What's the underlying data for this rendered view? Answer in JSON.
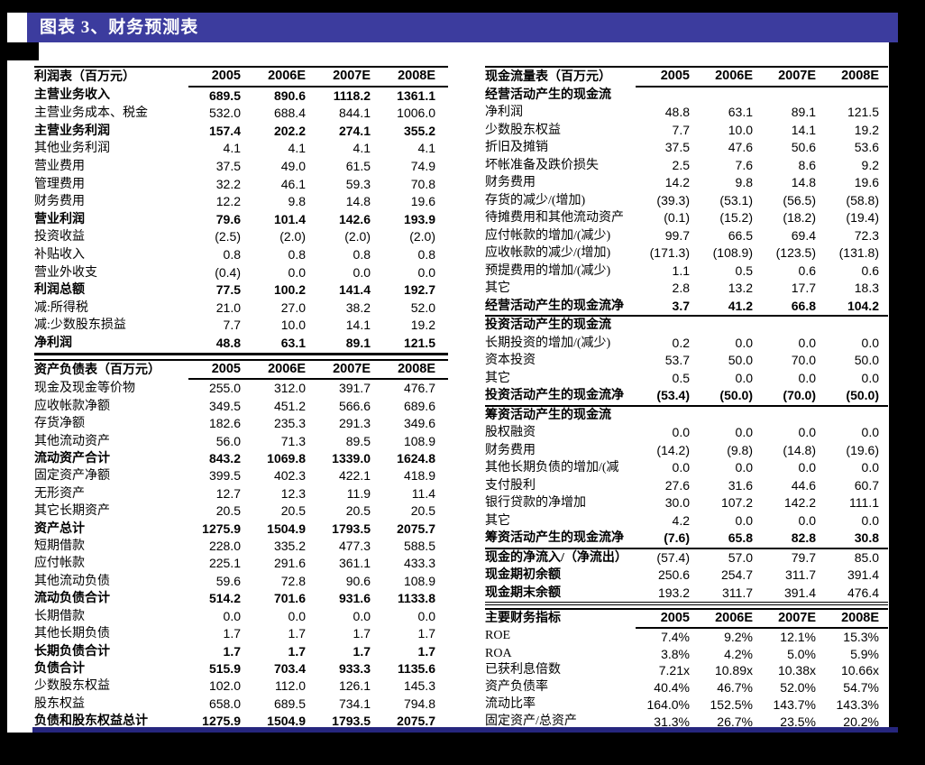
{
  "header": {
    "title": "图表 3、财务预测表"
  },
  "colors": {
    "title_bar_bg": "#3c3c9e",
    "bottom_rule": "#26267e",
    "page_bg": "#ffffff",
    "canvas_bg": "#000000",
    "text": "#000000"
  },
  "tables": {
    "income": {
      "title": "利润表（百万元）",
      "years": [
        "2005",
        "2006E",
        "2007E",
        "2008E"
      ],
      "rows": [
        {
          "label": "主营业务收入",
          "bold": true,
          "values": [
            "689.5",
            "890.6",
            "1118.2",
            "1361.1"
          ]
        },
        {
          "label": "主营业务成本、税金",
          "values": [
            "532.0",
            "688.4",
            "844.1",
            "1006.0"
          ]
        },
        {
          "label": "主营业务利润",
          "bold": true,
          "values": [
            "157.4",
            "202.2",
            "274.1",
            "355.2"
          ]
        },
        {
          "label": "其他业务利润",
          "values": [
            "4.1",
            "4.1",
            "4.1",
            "4.1"
          ]
        },
        {
          "label": "营业费用",
          "values": [
            "37.5",
            "49.0",
            "61.5",
            "74.9"
          ]
        },
        {
          "label": "管理费用",
          "values": [
            "32.2",
            "46.1",
            "59.3",
            "70.8"
          ]
        },
        {
          "label": "财务费用",
          "values": [
            "12.2",
            "9.8",
            "14.8",
            "19.6"
          ]
        },
        {
          "label": "营业利润",
          "bold": true,
          "values": [
            "79.6",
            "101.4",
            "142.6",
            "193.9"
          ]
        },
        {
          "label": "投资收益",
          "values": [
            "(2.5)",
            "(2.0)",
            "(2.0)",
            "(2.0)"
          ]
        },
        {
          "label": "补贴收入",
          "values": [
            "0.8",
            "0.8",
            "0.8",
            "0.8"
          ]
        },
        {
          "label": "营业外收支",
          "values": [
            "(0.4)",
            "0.0",
            "0.0",
            "0.0"
          ]
        },
        {
          "label": "利润总额",
          "bold": true,
          "values": [
            "77.5",
            "100.2",
            "141.4",
            "192.7"
          ]
        },
        {
          "label": "减:所得税",
          "values": [
            "21.0",
            "27.0",
            "38.2",
            "52.0"
          ]
        },
        {
          "label": "减:少数股东损益",
          "values": [
            "7.7",
            "10.0",
            "14.1",
            "19.2"
          ]
        },
        {
          "label": "净利润",
          "bold": true,
          "rule_thick": true,
          "values": [
            "48.8",
            "63.1",
            "89.1",
            "121.5"
          ]
        }
      ]
    },
    "balance": {
      "title": "资产负债表（百万元）",
      "years": [
        "2005",
        "2006E",
        "2007E",
        "2008E"
      ],
      "rows": [
        {
          "label": "现金及现金等价物",
          "values": [
            "255.0",
            "312.0",
            "391.7",
            "476.7"
          ]
        },
        {
          "label": "应收帐款净额",
          "values": [
            "349.5",
            "451.2",
            "566.6",
            "689.6"
          ]
        },
        {
          "label": "存货净额",
          "values": [
            "182.6",
            "235.3",
            "291.3",
            "349.6"
          ]
        },
        {
          "label": "其他流动资产",
          "values": [
            "56.0",
            "71.3",
            "89.5",
            "108.9"
          ]
        },
        {
          "label": "流动资产合计",
          "bold": true,
          "values": [
            "843.2",
            "1069.8",
            "1339.0",
            "1624.8"
          ]
        },
        {
          "label": "固定资产净额",
          "values": [
            "399.5",
            "402.3",
            "422.1",
            "418.9"
          ]
        },
        {
          "label": "无形资产",
          "values": [
            "12.7",
            "12.3",
            "11.9",
            "11.4"
          ]
        },
        {
          "label": "其它长期资产",
          "values": [
            "20.5",
            "20.5",
            "20.5",
            "20.5"
          ]
        },
        {
          "label": "资产总计",
          "bold": true,
          "values": [
            "1275.9",
            "1504.9",
            "1793.5",
            "2075.7"
          ]
        },
        {
          "label": "短期借款",
          "values": [
            "228.0",
            "335.2",
            "477.3",
            "588.5"
          ]
        },
        {
          "label": "应付帐款",
          "values": [
            "225.1",
            "291.6",
            "361.1",
            "433.3"
          ]
        },
        {
          "label": "其他流动负债",
          "values": [
            "59.6",
            "72.8",
            "90.6",
            "108.9"
          ]
        },
        {
          "label": "流动负债合计",
          "bold": true,
          "values": [
            "514.2",
            "701.6",
            "931.6",
            "1133.8"
          ]
        },
        {
          "label": "长期借款",
          "values": [
            "0.0",
            "0.0",
            "0.0",
            "0.0"
          ]
        },
        {
          "label": "其他长期负债",
          "values": [
            "1.7",
            "1.7",
            "1.7",
            "1.7"
          ]
        },
        {
          "label": "长期负债合计",
          "bold": true,
          "values": [
            "1.7",
            "1.7",
            "1.7",
            "1.7"
          ]
        },
        {
          "label": "负债合计",
          "bold": true,
          "values": [
            "515.9",
            "703.4",
            "933.3",
            "1135.6"
          ]
        },
        {
          "label": "少数股东权益",
          "values": [
            "102.0",
            "112.0",
            "126.1",
            "145.3"
          ]
        },
        {
          "label": "股东权益",
          "values": [
            "658.0",
            "689.5",
            "734.1",
            "794.8"
          ]
        },
        {
          "label": "负债和股东权益总计",
          "bold": true,
          "values": [
            "1275.9",
            "1504.9",
            "1793.5",
            "2075.7"
          ]
        }
      ]
    },
    "cashflow": {
      "title": "现金流量表（百万元）",
      "years": [
        "2005",
        "2006E",
        "2007E",
        "2008E"
      ],
      "rows": [
        {
          "label": "经营活动产生的现金流",
          "section": true,
          "values": [
            "",
            "",
            "",
            ""
          ]
        },
        {
          "label": "净利润",
          "values": [
            "48.8",
            "63.1",
            "89.1",
            "121.5"
          ]
        },
        {
          "label": "少数股东权益",
          "values": [
            "7.7",
            "10.0",
            "14.1",
            "19.2"
          ]
        },
        {
          "label": "折旧及摊销",
          "values": [
            "37.5",
            "47.6",
            "50.6",
            "53.6"
          ]
        },
        {
          "label": "坏帐准备及跌价损失",
          "values": [
            "2.5",
            "7.6",
            "8.6",
            "9.2"
          ]
        },
        {
          "label": "财务费用",
          "values": [
            "14.2",
            "9.8",
            "14.8",
            "19.6"
          ]
        },
        {
          "label": "存货的减少/(增加)",
          "values": [
            "(39.3)",
            "(53.1)",
            "(56.5)",
            "(58.8)"
          ]
        },
        {
          "label": "待摊费用和其他流动资产",
          "values": [
            "(0.1)",
            "(15.2)",
            "(18.2)",
            "(19.4)"
          ]
        },
        {
          "label": "应付帐款的增加/(减少)",
          "values": [
            "99.7",
            "66.5",
            "69.4",
            "72.3"
          ]
        },
        {
          "label": "应收帐款的减少/(增加)",
          "values": [
            "(171.3)",
            "(108.9)",
            "(123.5)",
            "(131.8)"
          ]
        },
        {
          "label": "预提费用的增加/(减少)",
          "values": [
            "1.1",
            "0.5",
            "0.6",
            "0.6"
          ]
        },
        {
          "label": "其它",
          "values": [
            "2.8",
            "13.2",
            "17.7",
            "18.3"
          ]
        },
        {
          "label": "经营活动产生的现金流净",
          "bold": true,
          "rule": true,
          "values": [
            "3.7",
            "41.2",
            "66.8",
            "104.2"
          ]
        },
        {
          "label": "投资活动产生的现金流",
          "section": true,
          "values": [
            "",
            "",
            "",
            ""
          ]
        },
        {
          "label": "长期投资的增加/(减少)",
          "values": [
            "0.2",
            "0.0",
            "0.0",
            "0.0"
          ]
        },
        {
          "label": "资本投资",
          "values": [
            "53.7",
            "50.0",
            "70.0",
            "50.0"
          ]
        },
        {
          "label": "其它",
          "values": [
            "0.5",
            "0.0",
            "0.0",
            "0.0"
          ]
        },
        {
          "label": "投资活动产生的现金流净",
          "bold": true,
          "rule": true,
          "values": [
            "(53.4)",
            "(50.0)",
            "(70.0)",
            "(50.0)"
          ]
        },
        {
          "label": "筹资活动产生的现金流",
          "section": true,
          "values": [
            "",
            "",
            "",
            ""
          ]
        },
        {
          "label": "股权融资",
          "values": [
            "0.0",
            "0.0",
            "0.0",
            "0.0"
          ]
        },
        {
          "label": "财务费用",
          "values": [
            "(14.2)",
            "(9.8)",
            "(14.8)",
            "(19.6)"
          ]
        },
        {
          "label": "其他长期负债的增加/(减",
          "values": [
            "0.0",
            "0.0",
            "0.0",
            "0.0"
          ]
        },
        {
          "label": "支付股利",
          "values": [
            "27.6",
            "31.6",
            "44.6",
            "60.7"
          ]
        },
        {
          "label": "银行贷款的净增加",
          "values": [
            "30.0",
            "107.2",
            "142.2",
            "111.1"
          ]
        },
        {
          "label": "其它",
          "values": [
            "4.2",
            "0.0",
            "0.0",
            "0.0"
          ]
        },
        {
          "label": "筹资活动产生的现金流净",
          "bold": true,
          "rule": true,
          "values": [
            "(7.6)",
            "65.8",
            "82.8",
            "30.8"
          ]
        },
        {
          "label": "现金的净流入/（净流出）",
          "bold_label": true,
          "values": [
            "(57.4)",
            "57.0",
            "79.7",
            "85.0"
          ]
        },
        {
          "label": "现金期初余额",
          "bold_label": true,
          "values": [
            "250.6",
            "254.7",
            "311.7",
            "391.4"
          ]
        },
        {
          "label": "现金期末余额",
          "bold_label": true,
          "rule_double": true,
          "values": [
            "193.2",
            "311.7",
            "391.4",
            "476.4"
          ]
        }
      ]
    },
    "metrics": {
      "title": "主要财务指标",
      "years": [
        "2005",
        "2006E",
        "2007E",
        "2008E"
      ],
      "rows": [
        {
          "label": "ROE",
          "values": [
            "7.4%",
            "9.2%",
            "12.1%",
            "15.3%"
          ]
        },
        {
          "label": "ROA",
          "values": [
            "3.8%",
            "4.2%",
            "5.0%",
            "5.9%"
          ]
        },
        {
          "label": "已获利息倍数",
          "values": [
            "7.21x",
            "10.89x",
            "10.38x",
            "10.66x"
          ]
        },
        {
          "label": "资产负债率",
          "values": [
            "40.4%",
            "46.7%",
            "52.0%",
            "54.7%"
          ]
        },
        {
          "label": "流动比率",
          "values": [
            "164.0%",
            "152.5%",
            "143.7%",
            "143.3%"
          ]
        },
        {
          "label": "固定资产/总资产",
          "values": [
            "31.3%",
            "26.7%",
            "23.5%",
            "20.2%"
          ]
        }
      ]
    }
  }
}
